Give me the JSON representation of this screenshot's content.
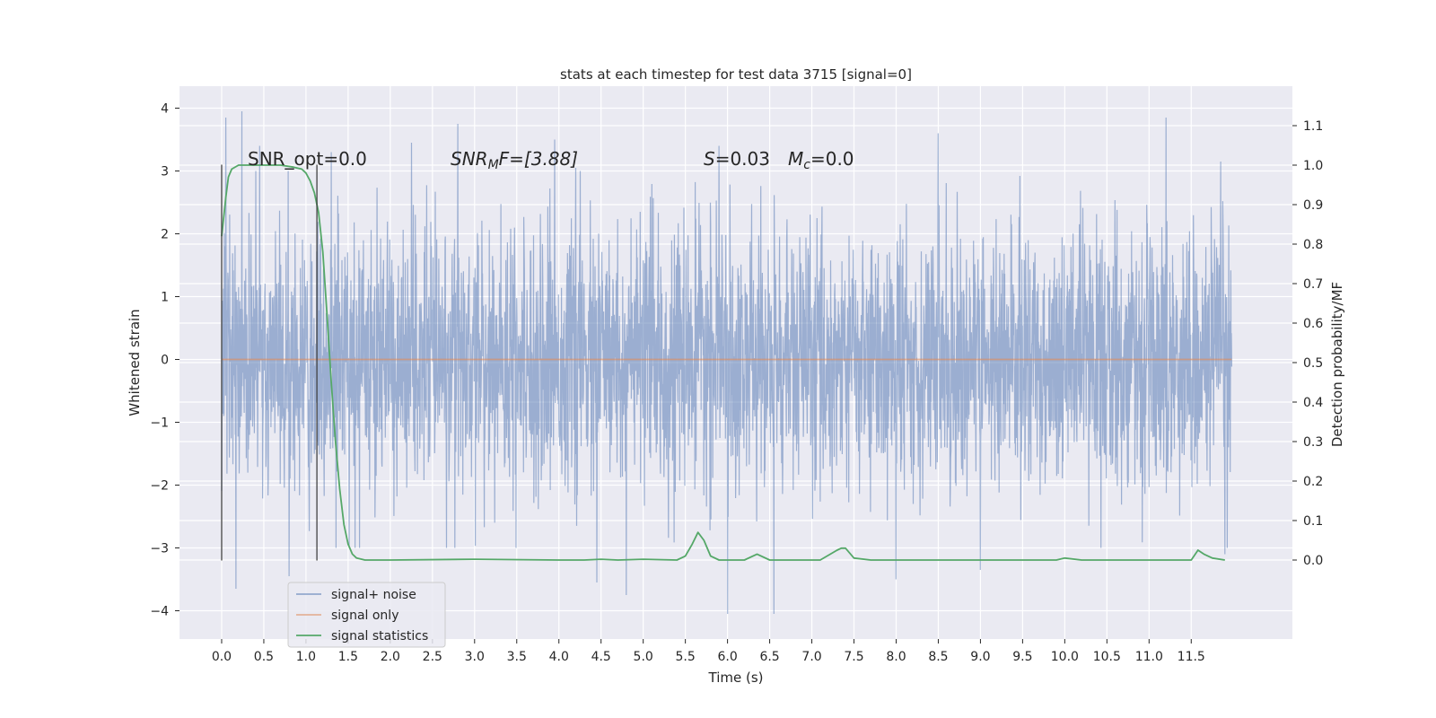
{
  "chart_data": {
    "type": "line",
    "title": "stats at each timestep for test data 3715 [signal=0]",
    "xlabel": "Time (s)",
    "ylabel_left": "Whitened strain",
    "ylabel_right": "Detection probability/MF",
    "xlim": [
      -0.5,
      12.7
    ],
    "ylim_left": [
      -4.45,
      4.35
    ],
    "ylim_right": [
      -0.2,
      1.2
    ],
    "x_ticks": [
      0.0,
      0.5,
      1.0,
      1.5,
      2.0,
      2.5,
      3.0,
      3.5,
      4.0,
      4.5,
      5.0,
      5.5,
      6.0,
      6.5,
      7.0,
      7.5,
      8.0,
      8.5,
      9.0,
      9.5,
      10.0,
      10.5,
      11.0,
      11.5
    ],
    "y_ticks_left": [
      -4,
      -3,
      -2,
      -1,
      0,
      1,
      2,
      3,
      4
    ],
    "y_ticks_right": [
      0.0,
      0.1,
      0.2,
      0.3,
      0.4,
      0.5,
      0.6,
      0.7,
      0.8,
      0.9,
      1.0,
      1.1
    ],
    "grid": true,
    "legend_position": "lower-left",
    "annotations": {
      "snr_opt": "SNR_opt=0.0",
      "snr_mf_sym": "SNR",
      "snr_mf_sub": "M",
      "snr_mf_rest": "F=[3.88]",
      "s_sym": "S",
      "s_val": "=0.03",
      "mc_sym": "M",
      "mc_sub": "c",
      "mc_val": "=0.0"
    },
    "vlines": [
      {
        "x": 0.0,
        "ymin": -3.2,
        "ymax": 3.1
      },
      {
        "x": 1.13,
        "ymin": -3.2,
        "ymax": 3.1
      }
    ],
    "series": [
      {
        "name": "signal+ noise",
        "color": "#4c72b0",
        "axis": "left",
        "x_range": [
          0.0,
          11.98
        ],
        "peak_markers": [
          {
            "x": 0.05,
            "y": 3.85
          },
          {
            "x": 0.24,
            "y": 3.95
          },
          {
            "x": 0.45,
            "y": 3.4
          },
          {
            "x": 1.3,
            "y": 3.3
          },
          {
            "x": 2.25,
            "y": 3.45
          },
          {
            "x": 2.8,
            "y": 3.75
          },
          {
            "x": 3.95,
            "y": 3.5
          },
          {
            "x": 4.2,
            "y": 3.05
          },
          {
            "x": 5.9,
            "y": 3.4
          },
          {
            "x": 8.5,
            "y": 3.6
          },
          {
            "x": 11.2,
            "y": 3.85
          },
          {
            "x": 11.85,
            "y": 3.15
          }
        ],
        "trough_markers": [
          {
            "x": 0.17,
            "y": -3.65
          },
          {
            "x": 0.8,
            "y": -3.45
          },
          {
            "x": 4.45,
            "y": -3.55
          },
          {
            "x": 4.8,
            "y": -3.75
          },
          {
            "x": 6.0,
            "y": -4.05
          },
          {
            "x": 6.55,
            "y": -4.05
          },
          {
            "x": 8.0,
            "y": -3.5
          },
          {
            "x": 9.0,
            "y": -3.35
          },
          {
            "x": 11.9,
            "y": -3.1
          }
        ]
      },
      {
        "name": "signal only",
        "color": "#dd8452",
        "axis": "left",
        "x": [
          0.0,
          11.98
        ],
        "y": [
          0.0,
          0.0
        ]
      },
      {
        "name": "signal statistics",
        "color": "#55a868",
        "axis": "right",
        "x": [
          0.0,
          0.05,
          0.08,
          0.12,
          0.2,
          0.3,
          0.5,
          0.7,
          0.85,
          0.95,
          1.0,
          1.05,
          1.1,
          1.15,
          1.2,
          1.25,
          1.3,
          1.35,
          1.4,
          1.45,
          1.5,
          1.55,
          1.6,
          1.7,
          2.0,
          3.0,
          4.0,
          4.3,
          4.5,
          4.7,
          5.0,
          5.4,
          5.5,
          5.58,
          5.65,
          5.72,
          5.8,
          5.9,
          6.2,
          6.35,
          6.5,
          6.8,
          7.1,
          7.3,
          7.35,
          7.4,
          7.5,
          7.7,
          9.5,
          9.9,
          10.0,
          10.2,
          11.4,
          11.5,
          11.58,
          11.65,
          11.75,
          11.9
        ],
        "y": [
          0.82,
          0.92,
          0.97,
          0.99,
          1.0,
          1.0,
          1.0,
          1.0,
          0.995,
          0.99,
          0.98,
          0.96,
          0.93,
          0.88,
          0.78,
          0.62,
          0.45,
          0.3,
          0.18,
          0.09,
          0.04,
          0.015,
          0.005,
          0.0,
          0.0,
          0.002,
          0.0,
          0.0,
          0.002,
          0.0,
          0.002,
          0.0,
          0.01,
          0.04,
          0.07,
          0.05,
          0.01,
          0.0,
          0.0,
          0.015,
          0.0,
          0.0,
          0.0,
          0.025,
          0.03,
          0.03,
          0.005,
          0.0,
          0.0,
          0.0,
          0.005,
          0.0,
          0.0,
          0.0,
          0.025,
          0.015,
          0.005,
          0.0
        ]
      }
    ]
  }
}
